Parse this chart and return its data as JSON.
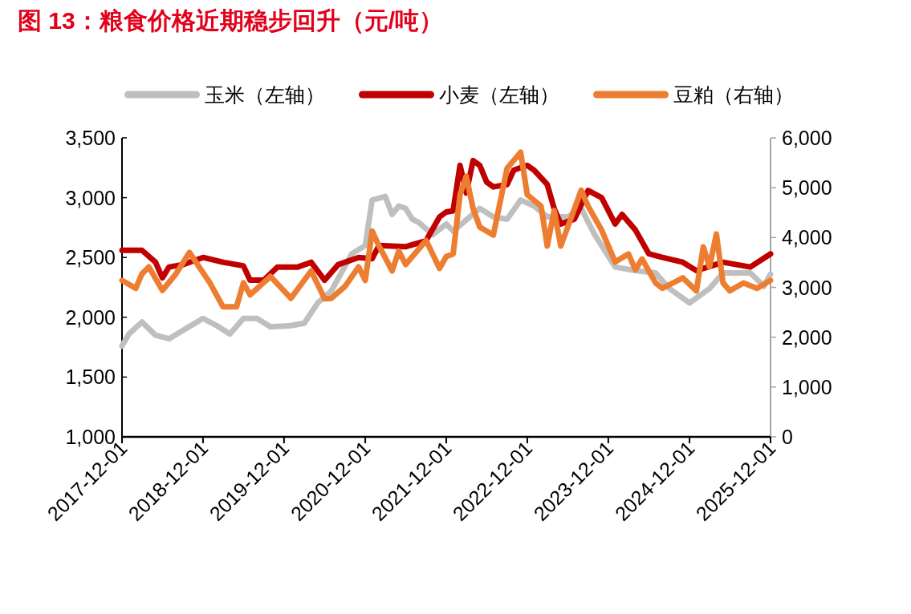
{
  "chart_data": {
    "type": "line",
    "title": "图 13：粮食价格近期稳步回升（元/吨）",
    "xlim": [
      "2017-12-01",
      "2025-12-01"
    ],
    "xticks": [
      "2017-12-01",
      "2018-12-01",
      "2019-12-01",
      "2020-12-01",
      "2021-12-01",
      "2022-12-01",
      "2023-12-01",
      "2024-12-01",
      "2025-12-01"
    ],
    "ylim": [
      1000,
      3500
    ],
    "yticks": [
      {
        "value": 1000,
        "label": "1,000"
      },
      {
        "value": 1500,
        "label": "1,500"
      },
      {
        "value": 2000,
        "label": "2,000"
      },
      {
        "value": 2500,
        "label": "2,500"
      },
      {
        "value": 3000,
        "label": "3,000"
      },
      {
        "value": 3500,
        "label": "3,500"
      }
    ],
    "y2lim": [
      0,
      6000
    ],
    "y2ticks": [
      0,
      {
        "value": 1000,
        "label": "1,000"
      },
      {
        "value": 2000,
        "label": "2,000"
      },
      {
        "value": 3000,
        "label": "3,000"
      },
      {
        "value": 4000,
        "label": "4,000"
      },
      {
        "value": 5000,
        "label": "5,000"
      },
      {
        "value": 6000,
        "label": "6,000"
      }
    ],
    "legend": "top",
    "grid": false,
    "marker": "none",
    "line_style": "solid",
    "series": [
      {
        "name": "玉米（左轴）",
        "color": "#bfbfbf",
        "x": [
          "2017-12",
          "2018-01",
          "2018-03",
          "2018-05",
          "2018-07",
          "2018-09",
          "2018-12",
          "2019-02",
          "2019-04",
          "2019-06",
          "2019-08",
          "2019-10",
          "2020-01",
          "2020-03",
          "2020-05",
          "2020-07",
          "2020-10",
          "2020-12",
          "2021-01",
          "2021-03",
          "2021-04",
          "2021-05",
          "2021-06",
          "2021-07",
          "2021-08",
          "2021-10",
          "2021-12",
          "2022-01",
          "2022-05",
          "2022-07",
          "2022-09",
          "2022-11",
          "2023-01",
          "2023-03",
          "2023-06",
          "2023-08",
          "2023-10",
          "2024-01",
          "2024-04",
          "2024-07",
          "2024-09",
          "2024-12",
          "2025-03",
          "2025-05",
          "2025-09",
          "2025-11",
          "2025-12"
        ],
        "values": [
          1760,
          1860,
          1960,
          1850,
          1820,
          1890,
          1990,
          1930,
          1860,
          1990,
          1990,
          1920,
          1930,
          1950,
          2120,
          2220,
          2530,
          2600,
          2980,
          3010,
          2860,
          2930,
          2910,
          2820,
          2790,
          2690,
          2780,
          2720,
          2910,
          2840,
          2820,
          2980,
          2930,
          2840,
          2840,
          2910,
          2690,
          2420,
          2390,
          2370,
          2240,
          2120,
          2240,
          2370,
          2370,
          2260,
          2360
        ]
      },
      {
        "name": "小麦（左轴）",
        "color": "#c00000",
        "x": [
          "2017-12",
          "2018-03",
          "2018-05",
          "2018-06",
          "2018-07",
          "2018-09",
          "2018-12",
          "2019-03",
          "2019-06",
          "2019-07",
          "2019-09",
          "2019-11",
          "2020-02",
          "2020-04",
          "2020-06",
          "2020-08",
          "2020-11",
          "2021-01",
          "2021-02",
          "2021-06",
          "2021-09",
          "2021-11",
          "2021-12",
          "2022-01",
          "2022-02",
          "2022-03",
          "2022-04",
          "2022-05",
          "2022-06",
          "2022-07",
          "2022-09",
          "2022-10",
          "2022-12",
          "2023-01",
          "2023-03",
          "2023-04",
          "2023-05",
          "2023-07",
          "2023-09",
          "2023-11",
          "2024-01",
          "2024-02",
          "2024-04",
          "2024-06",
          "2024-08",
          "2024-11",
          "2025-01",
          "2025-05",
          "2025-09",
          "2025-12"
        ],
        "values": [
          2560,
          2560,
          2460,
          2330,
          2420,
          2440,
          2500,
          2460,
          2430,
          2310,
          2310,
          2420,
          2420,
          2460,
          2310,
          2440,
          2500,
          2490,
          2600,
          2590,
          2640,
          2840,
          2880,
          2890,
          3270,
          3040,
          3310,
          3270,
          3130,
          3090,
          3110,
          3230,
          3270,
          3230,
          3110,
          2910,
          2780,
          2820,
          3060,
          3000,
          2780,
          2860,
          2730,
          2530,
          2500,
          2460,
          2390,
          2460,
          2420,
          2530
        ]
      },
      {
        "name": "豆粕（右轴）",
        "color": "#ed7d31",
        "axis": "y2",
        "x": [
          "2017-12",
          "2018-02",
          "2018-03",
          "2018-04",
          "2018-06",
          "2018-08",
          "2018-10",
          "2019-01",
          "2019-03",
          "2019-05",
          "2019-06",
          "2019-07",
          "2019-10",
          "2020-01",
          "2020-04",
          "2020-06",
          "2020-07",
          "2020-09",
          "2020-11",
          "2020-12",
          "2021-01",
          "2021-02",
          "2021-04",
          "2021-05",
          "2021-06",
          "2021-09",
          "2021-11",
          "2021-12",
          "2022-01",
          "2022-02",
          "2022-03",
          "2022-04",
          "2022-05",
          "2022-07",
          "2022-09",
          "2022-11",
          "2022-12",
          "2023-02",
          "2023-03",
          "2023-04",
          "2023-05",
          "2023-08",
          "2023-09",
          "2023-11",
          "2024-01",
          "2024-03",
          "2024-04",
          "2024-05",
          "2024-07",
          "2024-08",
          "2024-11",
          "2025-01",
          "2025-02",
          "2025-03",
          "2025-04",
          "2025-05",
          "2025-06",
          "2025-08",
          "2025-10",
          "2025-12"
        ],
        "values": [
          3140,
          2980,
          3270,
          3410,
          2940,
          3270,
          3700,
          3090,
          2610,
          2610,
          3090,
          2850,
          3220,
          2780,
          3330,
          2770,
          2780,
          3020,
          3410,
          3140,
          4130,
          3830,
          3330,
          3730,
          3460,
          3940,
          3380,
          3620,
          3670,
          4860,
          5230,
          4580,
          4210,
          4050,
          5390,
          5710,
          4860,
          4630,
          3830,
          4540,
          3830,
          4950,
          4630,
          4150,
          3510,
          3670,
          3350,
          3570,
          3090,
          2980,
          3190,
          2930,
          3810,
          3410,
          4070,
          3090,
          2930,
          3090,
          2980,
          3140
        ]
      }
    ]
  }
}
